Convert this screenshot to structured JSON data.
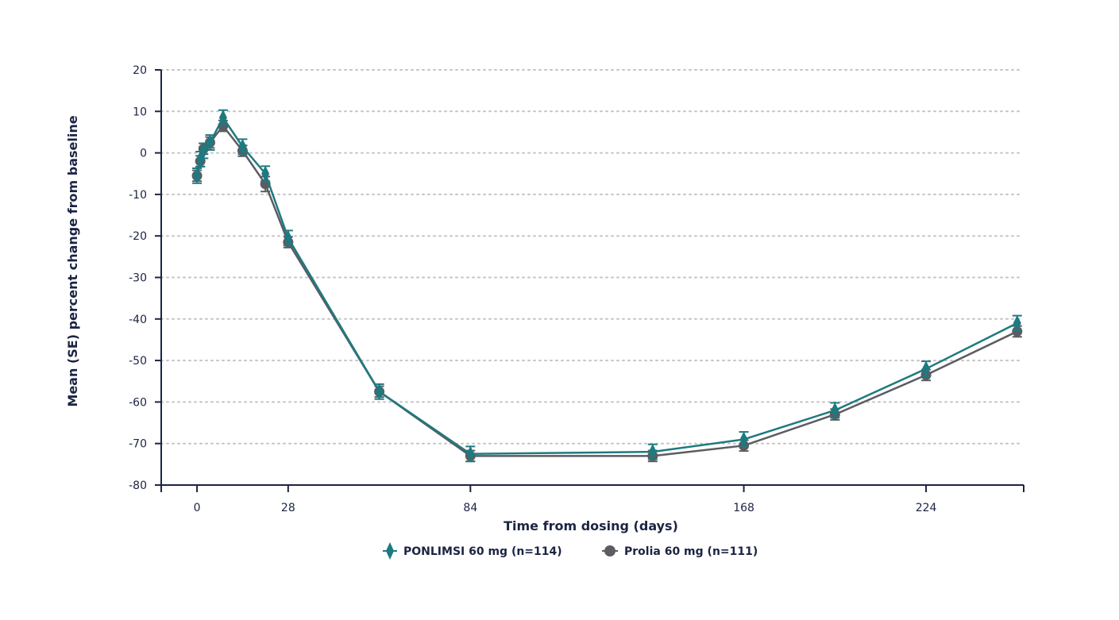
{
  "chart_data": {
    "type": "line",
    "title": "",
    "xlabel": "Time from dosing (days)",
    "ylabel": "Mean (SE) percent change from baseline",
    "xlim": [
      -11,
      254
    ],
    "ylim": [
      -80,
      20
    ],
    "xticks": [
      0,
      28,
      84,
      168,
      224
    ],
    "yticks": [
      20,
      10,
      0,
      -10,
      -20,
      -30,
      -40,
      -50,
      -60,
      -70,
      -80
    ],
    "grid": "horizontal-dotted",
    "legend_position": "bottom-center",
    "series": [
      {
        "name": "PONLIMSI 60 mg (n=114)",
        "color": "#1e7a80",
        "marker": "diamond",
        "points": [
          {
            "x": 0,
            "y": -5.5,
            "se": 1.8
          },
          {
            "x": 1,
            "y": -1.5,
            "se": 1.8
          },
          {
            "x": 2,
            "y": 0.5,
            "se": 1.8
          },
          {
            "x": 4,
            "y": 2.5,
            "se": 1.8
          },
          {
            "x": 8,
            "y": 8.5,
            "se": 1.8
          },
          {
            "x": 14,
            "y": 1.5,
            "se": 1.8
          },
          {
            "x": 21,
            "y": -5.0,
            "se": 1.8
          },
          {
            "x": 28,
            "y": -20.5,
            "se": 1.8
          },
          {
            "x": 56,
            "y": -57.5,
            "se": 1.8
          },
          {
            "x": 84,
            "y": -72.5,
            "se": 1.8
          },
          {
            "x": 140,
            "y": -72.0,
            "se": 1.8
          },
          {
            "x": 168,
            "y": -69.0,
            "se": 1.8
          },
          {
            "x": 196,
            "y": -62.0,
            "se": 1.8
          },
          {
            "x": 224,
            "y": -52.0,
            "se": 1.8
          },
          {
            "x": 252,
            "y": -41.0,
            "se": 1.8
          }
        ]
      },
      {
        "name": "Prolia 60 mg (n=111)",
        "color": "#5c5c61",
        "marker": "circle",
        "points": [
          {
            "x": 0,
            "y": -5.5,
            "se": 1.3
          },
          {
            "x": 1,
            "y": -2.0,
            "se": 1.3
          },
          {
            "x": 2,
            "y": 1.0,
            "se": 1.3
          },
          {
            "x": 4,
            "y": 2.5,
            "se": 1.3
          },
          {
            "x": 8,
            "y": 6.5,
            "se": 1.3
          },
          {
            "x": 14,
            "y": 0.5,
            "se": 1.3
          },
          {
            "x": 21,
            "y": -7.5,
            "se": 1.8
          },
          {
            "x": 28,
            "y": -21.5,
            "se": 1.3
          },
          {
            "x": 56,
            "y": -57.5,
            "se": 1.3
          },
          {
            "x": 84,
            "y": -73.0,
            "se": 1.3
          },
          {
            "x": 140,
            "y": -73.0,
            "se": 1.3
          },
          {
            "x": 168,
            "y": -70.5,
            "se": 1.3
          },
          {
            "x": 196,
            "y": -63.0,
            "se": 1.3
          },
          {
            "x": 224,
            "y": -53.5,
            "se": 1.3
          },
          {
            "x": 252,
            "y": -43.0,
            "se": 1.3
          }
        ]
      }
    ]
  }
}
